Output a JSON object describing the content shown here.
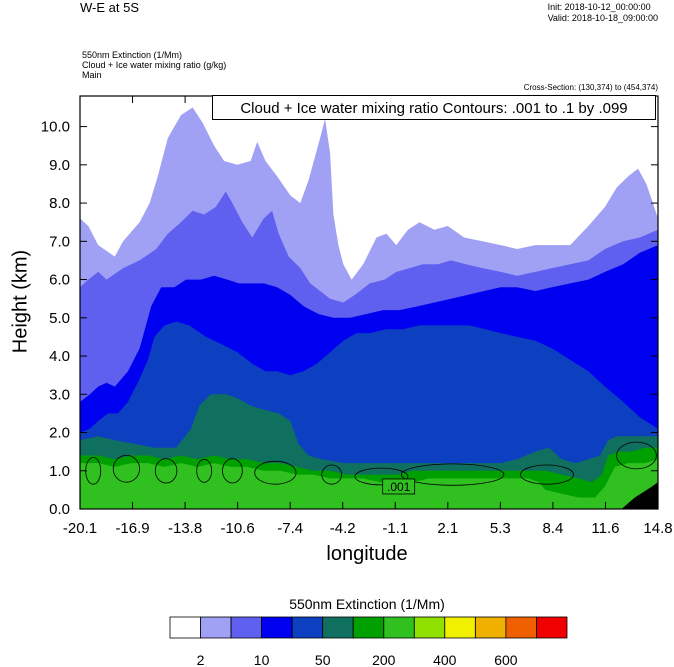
{
  "header": {
    "title": "W-E at 5S",
    "init": "Init: 2018-10-12_00:00:00",
    "valid": "Valid: 2018-10-18_09:00:00",
    "field1": "550nm Extinction   (1/Mm)",
    "field2": "Cloud + Ice water mixing ratio   (g/kg)",
    "field3": "Main",
    "cross_section": "Cross-Section: (130,374) to (454,374)",
    "contour_info": "Cloud + Ice water mixing ratio Contours: .001 to .1 by .099"
  },
  "chart_data": {
    "type": "heatmap",
    "xlabel": "longitude",
    "ylabel": "Height (km)",
    "xlim": [
      -20.1,
      14.8
    ],
    "ylim": [
      0.0,
      10.8
    ],
    "x_ticks": [
      "-20.1",
      "-16.9",
      "-13.8",
      "-10.6",
      "-7.4",
      "-4.2",
      "-1.1",
      "2.1",
      "5.3",
      "8.4",
      "11.6",
      "14.8"
    ],
    "y_ticks": [
      "0.0",
      "1.0",
      "2.0",
      "3.0",
      "4.0",
      "5.0",
      "6.0",
      "7.0",
      "8.0",
      "9.0",
      "10.0"
    ],
    "contour_label": ".001",
    "colorbar": {
      "title": "550nm Extinction  (1/Mm)",
      "colors": [
        "#ffffff",
        "#a0a0f5",
        "#6060f0",
        "#0000f0",
        "#0d40c0",
        "#107060",
        "#00a000",
        "#30c020",
        "#90e000",
        "#f0f000",
        "#f0b000",
        "#f06000",
        "#f00000"
      ],
      "labels": [
        "2",
        "10",
        "50",
        "200",
        "400",
        "600"
      ]
    },
    "layers": [
      {
        "level": 1,
        "top": [
          [
            -20.1,
            7.6
          ],
          [
            -19.6,
            7.4
          ],
          [
            -19.0,
            6.9
          ],
          [
            -18.0,
            6.6
          ],
          [
            -17.5,
            7.0
          ],
          [
            -16.5,
            7.5
          ],
          [
            -15.9,
            8.0
          ],
          [
            -15.4,
            8.7
          ],
          [
            -14.8,
            9.7
          ],
          [
            -14.0,
            10.3
          ],
          [
            -13.3,
            10.5
          ],
          [
            -12.7,
            10.1
          ],
          [
            -12.0,
            9.5
          ],
          [
            -11.4,
            9.1
          ],
          [
            -10.6,
            9.0
          ],
          [
            -9.8,
            9.1
          ],
          [
            -9.4,
            9.6
          ],
          [
            -8.9,
            9.1
          ],
          [
            -8.2,
            8.7
          ],
          [
            -7.4,
            8.2
          ],
          [
            -6.8,
            8.0
          ],
          [
            -6.3,
            8.6
          ],
          [
            -5.6,
            9.7
          ],
          [
            -5.3,
            10.2
          ],
          [
            -5.0,
            9.3
          ],
          [
            -4.8,
            7.7
          ],
          [
            -4.5,
            6.9
          ],
          [
            -4.2,
            6.4
          ],
          [
            -3.7,
            6.0
          ],
          [
            -3.0,
            6.4
          ],
          [
            -2.2,
            7.1
          ],
          [
            -1.6,
            7.2
          ],
          [
            -1.0,
            6.9
          ],
          [
            -0.3,
            7.3
          ],
          [
            0.4,
            7.5
          ],
          [
            1.3,
            7.3
          ],
          [
            2.1,
            7.4
          ],
          [
            3.1,
            7.1
          ],
          [
            4.2,
            7.0
          ],
          [
            5.3,
            6.9
          ],
          [
            6.3,
            6.8
          ],
          [
            7.4,
            6.9
          ],
          [
            8.4,
            6.9
          ],
          [
            9.5,
            6.9
          ],
          [
            10.6,
            7.4
          ],
          [
            11.6,
            7.9
          ],
          [
            12.3,
            8.4
          ],
          [
            13.0,
            8.7
          ],
          [
            13.6,
            8.9
          ],
          [
            14.1,
            8.5
          ],
          [
            14.8,
            7.6
          ]
        ]
      },
      {
        "level": 2,
        "top": [
          [
            -20.1,
            5.8
          ],
          [
            -19.6,
            6.0
          ],
          [
            -19.0,
            6.2
          ],
          [
            -18.5,
            6.0
          ],
          [
            -17.5,
            6.3
          ],
          [
            -16.5,
            6.5
          ],
          [
            -15.5,
            6.8
          ],
          [
            -14.8,
            7.2
          ],
          [
            -14.0,
            7.5
          ],
          [
            -13.3,
            7.8
          ],
          [
            -12.6,
            7.7
          ],
          [
            -11.9,
            7.9
          ],
          [
            -11.3,
            8.3
          ],
          [
            -10.9,
            8.0
          ],
          [
            -10.3,
            7.5
          ],
          [
            -9.7,
            7.1
          ],
          [
            -9.0,
            7.6
          ],
          [
            -8.5,
            7.8
          ],
          [
            -8.1,
            7.2
          ],
          [
            -7.5,
            6.6
          ],
          [
            -6.8,
            6.3
          ],
          [
            -6.2,
            5.9
          ],
          [
            -5.6,
            5.7
          ],
          [
            -5.0,
            5.5
          ],
          [
            -4.2,
            5.4
          ],
          [
            -3.5,
            5.6
          ],
          [
            -2.6,
            5.9
          ],
          [
            -1.7,
            6.0
          ],
          [
            -1.0,
            6.2
          ],
          [
            -0.2,
            6.3
          ],
          [
            0.6,
            6.4
          ],
          [
            1.5,
            6.4
          ],
          [
            2.3,
            6.5
          ],
          [
            3.2,
            6.4
          ],
          [
            4.2,
            6.3
          ],
          [
            5.3,
            6.2
          ],
          [
            6.3,
            6.1
          ],
          [
            7.4,
            6.2
          ],
          [
            8.4,
            6.3
          ],
          [
            9.5,
            6.4
          ],
          [
            10.6,
            6.5
          ],
          [
            11.6,
            6.8
          ],
          [
            12.7,
            7.0
          ],
          [
            13.7,
            7.1
          ],
          [
            14.8,
            7.3
          ]
        ]
      },
      {
        "level": 3,
        "top": [
          [
            -20.1,
            2.8
          ],
          [
            -19.5,
            3.0
          ],
          [
            -19.0,
            3.2
          ],
          [
            -18.5,
            3.3
          ],
          [
            -18.0,
            3.2
          ],
          [
            -17.2,
            3.6
          ],
          [
            -16.5,
            4.2
          ],
          [
            -15.8,
            5.3
          ],
          [
            -15.2,
            5.8
          ],
          [
            -14.4,
            5.8
          ],
          [
            -13.7,
            6.0
          ],
          [
            -12.8,
            6.0
          ],
          [
            -12.0,
            6.1
          ],
          [
            -11.2,
            6.0
          ],
          [
            -10.5,
            5.9
          ],
          [
            -9.8,
            5.9
          ],
          [
            -9.0,
            5.9
          ],
          [
            -8.2,
            5.8
          ],
          [
            -7.4,
            5.6
          ],
          [
            -6.6,
            5.3
          ],
          [
            -5.7,
            5.1
          ],
          [
            -4.8,
            5.0
          ],
          [
            -3.8,
            5.0
          ],
          [
            -2.8,
            5.1
          ],
          [
            -1.8,
            5.2
          ],
          [
            -0.8,
            5.2
          ],
          [
            0.3,
            5.3
          ],
          [
            1.3,
            5.4
          ],
          [
            2.3,
            5.5
          ],
          [
            3.3,
            5.6
          ],
          [
            4.3,
            5.7
          ],
          [
            5.3,
            5.8
          ],
          [
            6.3,
            5.8
          ],
          [
            7.4,
            5.7
          ],
          [
            8.4,
            5.8
          ],
          [
            9.5,
            5.9
          ],
          [
            10.6,
            6.0
          ],
          [
            11.6,
            6.2
          ],
          [
            12.7,
            6.4
          ],
          [
            13.7,
            6.7
          ],
          [
            14.8,
            6.9
          ]
        ]
      },
      {
        "level": 4,
        "top": [
          [
            -20.1,
            2.0
          ],
          [
            -19.5,
            2.1
          ],
          [
            -19.0,
            2.3
          ],
          [
            -18.4,
            2.5
          ],
          [
            -17.8,
            2.5
          ],
          [
            -17.2,
            2.8
          ],
          [
            -16.5,
            3.4
          ],
          [
            -16.0,
            3.9
          ],
          [
            -15.6,
            4.5
          ],
          [
            -15.0,
            4.8
          ],
          [
            -14.3,
            4.9
          ],
          [
            -13.5,
            4.8
          ],
          [
            -12.5,
            4.5
          ],
          [
            -11.5,
            4.3
          ],
          [
            -10.6,
            4.1
          ],
          [
            -9.7,
            3.8
          ],
          [
            -8.9,
            3.6
          ],
          [
            -8.2,
            3.6
          ],
          [
            -7.4,
            3.5
          ],
          [
            -6.6,
            3.6
          ],
          [
            -5.8,
            3.8
          ],
          [
            -5.0,
            4.1
          ],
          [
            -4.2,
            4.4
          ],
          [
            -3.4,
            4.6
          ],
          [
            -2.6,
            4.6
          ],
          [
            -1.6,
            4.7
          ],
          [
            -0.6,
            4.7
          ],
          [
            0.4,
            4.8
          ],
          [
            1.4,
            4.8
          ],
          [
            2.4,
            4.8
          ],
          [
            3.4,
            4.8
          ],
          [
            4.4,
            4.7
          ],
          [
            5.3,
            4.6
          ],
          [
            6.3,
            4.5
          ],
          [
            7.4,
            4.4
          ],
          [
            8.4,
            4.2
          ],
          [
            9.5,
            3.9
          ],
          [
            10.6,
            3.6
          ],
          [
            11.6,
            3.2
          ],
          [
            12.7,
            2.8
          ],
          [
            13.7,
            2.4
          ],
          [
            14.8,
            2.1
          ]
        ]
      },
      {
        "level": 5,
        "top": [
          [
            -20.1,
            1.8
          ],
          [
            -19.0,
            1.9
          ],
          [
            -18.0,
            1.8
          ],
          [
            -16.8,
            1.7
          ],
          [
            -15.6,
            1.6
          ],
          [
            -14.3,
            1.6
          ],
          [
            -13.4,
            2.1
          ],
          [
            -12.9,
            2.7
          ],
          [
            -12.2,
            3.0
          ],
          [
            -11.3,
            3.0
          ],
          [
            -10.6,
            2.9
          ],
          [
            -9.8,
            2.7
          ],
          [
            -9.0,
            2.6
          ],
          [
            -8.1,
            2.5
          ],
          [
            -7.4,
            2.3
          ],
          [
            -6.9,
            1.7
          ],
          [
            -6.3,
            1.4
          ],
          [
            -5.5,
            1.3
          ],
          [
            -4.2,
            1.2
          ],
          [
            -3.0,
            1.2
          ],
          [
            -1.8,
            1.2
          ],
          [
            -0.6,
            1.2
          ],
          [
            0.6,
            1.2
          ],
          [
            1.8,
            1.2
          ],
          [
            3.0,
            1.2
          ],
          [
            4.2,
            1.2
          ],
          [
            5.3,
            1.2
          ],
          [
            6.3,
            1.3
          ],
          [
            7.4,
            1.5
          ],
          [
            8.2,
            1.6
          ],
          [
            9.0,
            1.3
          ],
          [
            9.8,
            1.2
          ],
          [
            10.6,
            1.3
          ],
          [
            11.3,
            1.4
          ],
          [
            11.8,
            1.8
          ],
          [
            12.3,
            1.9
          ],
          [
            13.2,
            1.9
          ],
          [
            14.0,
            1.9
          ],
          [
            14.8,
            1.9
          ]
        ]
      },
      {
        "level": 6,
        "top": [
          [
            -20.1,
            1.4
          ],
          [
            -19.0,
            1.4
          ],
          [
            -18.0,
            1.3
          ],
          [
            -17.0,
            1.4
          ],
          [
            -16.0,
            1.4
          ],
          [
            -15.0,
            1.3
          ],
          [
            -14.0,
            1.4
          ],
          [
            -13.0,
            1.3
          ],
          [
            -12.0,
            1.4
          ],
          [
            -11.0,
            1.3
          ],
          [
            -10.0,
            1.3
          ],
          [
            -9.0,
            1.2
          ],
          [
            -8.0,
            1.2
          ],
          [
            -7.0,
            1.1
          ],
          [
            -6.0,
            1.0
          ],
          [
            -5.0,
            1.0
          ],
          [
            -4.0,
            0.9
          ],
          [
            -3.0,
            0.9
          ],
          [
            -2.0,
            0.9
          ],
          [
            -1.0,
            0.9
          ],
          [
            0.0,
            1.0
          ],
          [
            1.0,
            1.0
          ],
          [
            2.0,
            1.0
          ],
          [
            3.0,
            1.0
          ],
          [
            4.0,
            1.0
          ],
          [
            5.0,
            1.0
          ],
          [
            6.0,
            1.0
          ],
          [
            7.0,
            1.0
          ],
          [
            8.0,
            1.0
          ],
          [
            9.0,
            0.9
          ],
          [
            10.0,
            0.8
          ],
          [
            10.8,
            0.7
          ],
          [
            11.4,
            0.9
          ],
          [
            11.8,
            1.4
          ],
          [
            12.4,
            1.5
          ],
          [
            13.2,
            1.5
          ],
          [
            14.0,
            1.6
          ],
          [
            14.8,
            1.6
          ]
        ]
      },
      {
        "level": 7,
        "top": [
          [
            -20.1,
            1.2
          ],
          [
            -19.0,
            1.2
          ],
          [
            -18.0,
            1.1
          ],
          [
            -17.0,
            1.2
          ],
          [
            -16.0,
            1.2
          ],
          [
            -15.0,
            1.1
          ],
          [
            -14.0,
            1.2
          ],
          [
            -13.0,
            1.1
          ],
          [
            -12.0,
            1.2
          ],
          [
            -11.0,
            1.1
          ],
          [
            -10.0,
            1.1
          ],
          [
            -9.0,
            1.0
          ],
          [
            -8.0,
            1.0
          ],
          [
            -7.0,
            0.9
          ],
          [
            -6.0,
            0.9
          ],
          [
            -5.0,
            0.8
          ],
          [
            -4.0,
            0.8
          ],
          [
            -3.0,
            0.8
          ],
          [
            -2.0,
            0.7
          ],
          [
            -1.0,
            0.7
          ],
          [
            0.0,
            0.7
          ],
          [
            1.0,
            0.8
          ],
          [
            2.0,
            0.8
          ],
          [
            3.0,
            0.8
          ],
          [
            4.0,
            0.8
          ],
          [
            5.0,
            0.8
          ],
          [
            6.0,
            0.8
          ],
          [
            7.0,
            0.8
          ],
          [
            7.6,
            0.7
          ],
          [
            8.0,
            0.5
          ],
          [
            9.0,
            0.4
          ],
          [
            10.0,
            0.3
          ],
          [
            11.0,
            0.3
          ],
          [
            11.6,
            0.6
          ],
          [
            12.2,
            1.1
          ],
          [
            13.0,
            1.2
          ],
          [
            14.0,
            1.2
          ],
          [
            14.8,
            1.3
          ]
        ]
      }
    ]
  }
}
